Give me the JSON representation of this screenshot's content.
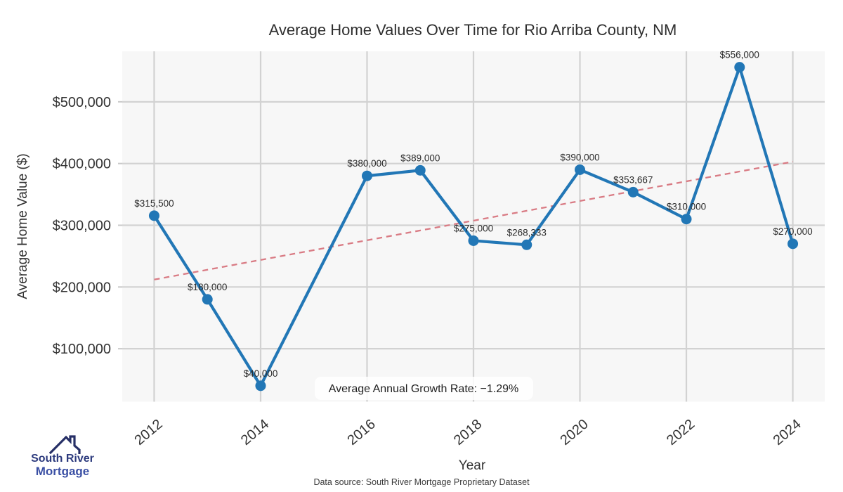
{
  "chart_data": {
    "type": "line",
    "title": "Average Home Values Over Time for Rio Arriba County, NM",
    "xlabel": "Year",
    "ylabel": "Average Home Value ($)",
    "x": [
      2012,
      2013,
      2014,
      2016,
      2017,
      2018,
      2019,
      2020,
      2021,
      2022,
      2023,
      2024
    ],
    "values": [
      315500,
      180000,
      40000,
      380000,
      389000,
      275000,
      268333,
      390000,
      353667,
      310000,
      556000,
      270000
    ],
    "point_labels": [
      "$315,500",
      "$180,000",
      "$40,000",
      "$380,000",
      "$389,000",
      "$275,000",
      "$268,333",
      "$390,000",
      "$353,667",
      "$310,000",
      "$556,000",
      "$270,000"
    ],
    "x_ticks": [
      2012,
      2014,
      2016,
      2018,
      2020,
      2022,
      2024
    ],
    "x_tick_labels": [
      "2012",
      "2014",
      "2016",
      "2018",
      "2020",
      "2022",
      "2024"
    ],
    "y_ticks": [
      100000,
      200000,
      300000,
      400000,
      500000
    ],
    "y_tick_labels": [
      "$100,000",
      "$200,000",
      "$300,000",
      "$400,000",
      "$500,000"
    ],
    "xlim": [
      2011.4,
      2024.6
    ],
    "ylim": [
      14200,
      581800
    ],
    "grid": true,
    "legend": "none",
    "annotation": "Average Annual Growth Rate: −1.29%",
    "trend": {
      "start_year": 2012,
      "start_value": 212000,
      "end_year": 2024,
      "end_value": 403000,
      "style": "dashed"
    },
    "colors": {
      "series": "#2277b6",
      "trend": "#d97b84",
      "grid": "#d2d2d2",
      "plot_bg": "#f7f7f7",
      "annotation_bg": "#ffffff"
    }
  },
  "logo": {
    "line1": "South River",
    "line2": "Mortgage",
    "colors": {
      "line1": "#2c3a7d",
      "line2": "#3a4fa4",
      "roof": "#262f66"
    }
  },
  "footer": {
    "text": "Data source: South River Mortgage Proprietary Dataset"
  }
}
